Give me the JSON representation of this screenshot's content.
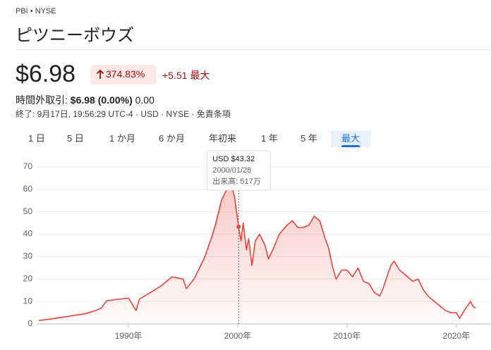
{
  "header": {
    "exchange": "PBI • NYSE",
    "name": "ピツニーボウズ",
    "price": "$6.98",
    "change_pct": "374.83%",
    "change": "+5.51",
    "period": "最大",
    "after_hours_label": "時間外取引:",
    "after_hours_price": "$6.98 (0.00%)",
    "after_hours_change": "0.00",
    "closing": "終了: 9月17日, 19:56:29 UTC-4 · USD · NYSE ·",
    "disclaimer": "免責条項"
  },
  "tabs": [
    "1 日",
    "5 日",
    "1 か月",
    "6 か月",
    "年初来",
    "1 年",
    "5 年",
    "最大"
  ],
  "chart_data": {
    "type": "line",
    "color": "#e8453c",
    "x": [
      1981.8,
      1983,
      1984,
      1985,
      1986,
      1987,
      1987.5,
      1988,
      1989,
      1990,
      1990.7,
      1991,
      1992,
      1993,
      1994,
      1995,
      1995.3,
      1996,
      1996.5,
      1997,
      1997.7,
      1998,
      1998.5,
      1999,
      1999.3,
      1999.7,
      2000.08,
      2000.3,
      2000.5,
      2000.8,
      2001,
      2001.3,
      2001.6,
      2002,
      2002.5,
      2002.8,
      2003.2,
      2003.8,
      2004.5,
      2005,
      2005.5,
      2006,
      2006.5,
      2007,
      2007.5,
      2008,
      2008.3,
      2008.7,
      2009,
      2009.5,
      2010,
      2010.5,
      2011,
      2011.5,
      2012,
      2012.5,
      2013,
      2013.3,
      2014,
      2014.3,
      2014.8,
      2015.3,
      2016,
      2016.5,
      2017,
      2017.5,
      2018,
      2018.5,
      2019,
      2019.5,
      2020,
      2020.3,
      2020.6,
      2021,
      2021.3,
      2021.5,
      2021.75
    ],
    "values": [
      1.5,
      2.3,
      3,
      3.8,
      4.5,
      6,
      7,
      10.3,
      11,
      11.5,
      6,
      11,
      14,
      17,
      21,
      20,
      15.7,
      20,
      25,
      30,
      40,
      45,
      55,
      60,
      64,
      57,
      43.32,
      37,
      45,
      33,
      38,
      26,
      37,
      40,
      35,
      29,
      33,
      40,
      44,
      46,
      43,
      43,
      44,
      48,
      46,
      38,
      34,
      25,
      20,
      24,
      24,
      21,
      25,
      19,
      18,
      14,
      12.5,
      16,
      26,
      28,
      24,
      22,
      19,
      20,
      15,
      12,
      10,
      8,
      6,
      5,
      5,
      2.5,
      5,
      8,
      10,
      8,
      7
    ],
    "xlim": [
      1981.8,
      2021.75
    ],
    "xticks": [
      {
        "value": 1990,
        "label": "1990年"
      },
      {
        "value": 2000,
        "label": "2000年"
      },
      {
        "value": 2010,
        "label": "2010年"
      },
      {
        "value": 2020,
        "label": "2020年"
      }
    ],
    "ylim": [
      0,
      70
    ],
    "yticks": [
      0,
      10,
      20,
      30,
      40,
      50,
      60,
      70
    ],
    "grid": true,
    "tooltip": {
      "x": 2000.08,
      "value": 43.32,
      "value_label": "USD $43.32",
      "date": "2000/01/28",
      "volume": "出来高: 517万"
    }
  }
}
